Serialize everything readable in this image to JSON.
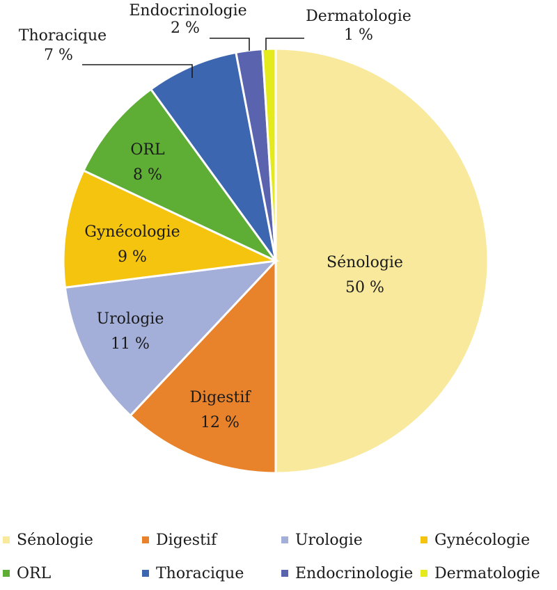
{
  "chart_data": {
    "type": "pie",
    "title": "",
    "slices": [
      {
        "name": "Sénologie",
        "value": 50,
        "value_label": "50 %",
        "color": "#F8E99D"
      },
      {
        "name": "Digestif",
        "value": 12,
        "value_label": "12 %",
        "color": "#E8832B"
      },
      {
        "name": "Urologie",
        "value": 11,
        "value_label": "11 %",
        "color": "#A3AFD8"
      },
      {
        "name": "Gynécologie",
        "value": 9,
        "value_label": "9 %",
        "color": "#F5C40F"
      },
      {
        "name": "ORL",
        "value": 8,
        "value_label": "8 %",
        "color": "#5EAD35"
      },
      {
        "name": "Thoracique",
        "value": 7,
        "value_label": "7 %",
        "color": "#3C67B0"
      },
      {
        "name": "Endocrinologie",
        "value": 2,
        "value_label": "2 %",
        "color": "#5A63AE"
      },
      {
        "name": "Dermatologie",
        "value": 1,
        "value_label": "1 %",
        "color": "#E5EA1D"
      }
    ],
    "start_angle": "12 o'clock",
    "direction": "clockwise",
    "labels": "inside large slices, outside with leader lines for small slices",
    "legend": "bottom"
  }
}
